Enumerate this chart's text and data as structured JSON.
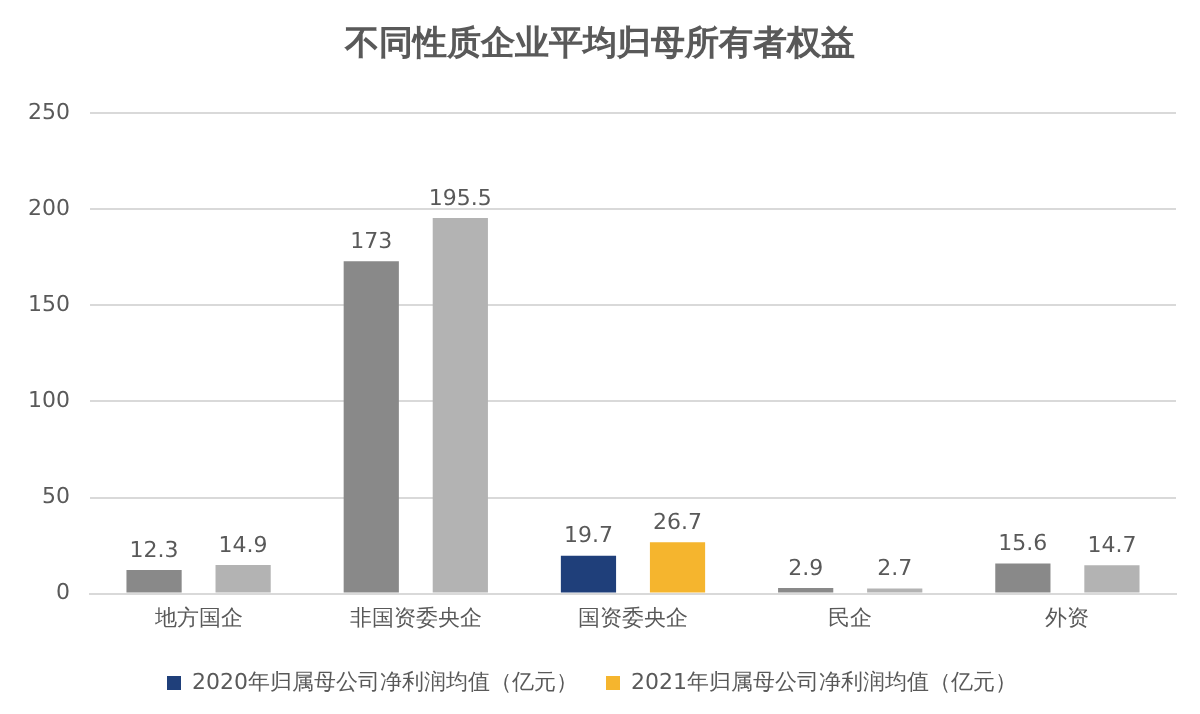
{
  "chart_data": {
    "type": "bar",
    "title": "不同性质企业平均归母所有者权益",
    "categories": [
      "地方国企",
      "非国资委央企",
      "国资委央企",
      "民企",
      "外资"
    ],
    "series": [
      {
        "name": "2020年归属母公司净利润均值（亿元）",
        "color": "#1f3f7a",
        "colors": [
          "#898989",
          "#898989",
          "#1f3f7a",
          "#898989",
          "#898989"
        ],
        "values": [
          12.3,
          173,
          19.7,
          2.9,
          15.6
        ]
      },
      {
        "name": "2021年归属母公司净利润均值（亿元）",
        "color": "#f5b52e",
        "colors": [
          "#b3b3b3",
          "#b3b3b3",
          "#f5b52e",
          "#b3b3b3",
          "#b3b3b3"
        ],
        "values": [
          14.9,
          195.5,
          26.7,
          2.7,
          14.7
        ]
      }
    ],
    "ylim": [
      0,
      250
    ],
    "yticks": [
      0,
      50,
      100,
      150,
      200,
      250
    ],
    "grid": "y",
    "legend": "bottom",
    "data_labels": true
  }
}
